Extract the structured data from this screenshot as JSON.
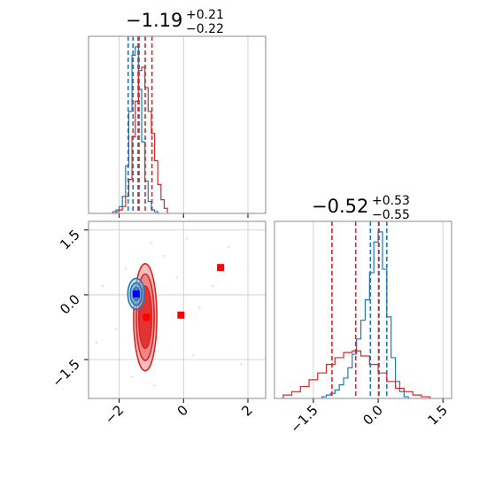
{
  "chart_data": {
    "type": "corner",
    "panels": [
      {
        "id": "marginal-1",
        "type": "histogram",
        "title": {
          "value": "−1.19",
          "plus": "+0.21",
          "minus": "−0.22"
        },
        "xlim": [
          -2.95,
          2.55
        ],
        "xticks": [
          -2,
          0,
          2
        ],
        "xtick_labels": [
          "",
          "",
          ""
        ],
        "grid": true,
        "series": [
          {
            "name": "",
            "color": "#1f77b4",
            "bin_edges": [
              -2.2,
              -2.1,
              -2.0,
              -1.9,
              -1.8,
              -1.7,
              -1.6,
              -1.5,
              -1.4,
              -1.3,
              -1.2,
              -1.1,
              -1.0,
              -0.9,
              -0.8
            ],
            "counts": [
              0.01,
              0.02,
              0.04,
              0.1,
              0.28,
              0.6,
              0.93,
              0.98,
              0.73,
              0.42,
              0.19,
              0.07,
              0.02,
              0.01
            ],
            "quantile_lines": [
              -1.72,
              -1.57,
              -1.38
            ]
          },
          {
            "name": "",
            "color": "#d62728",
            "bin_edges": [
              -2.1,
              -2.0,
              -1.9,
              -1.8,
              -1.7,
              -1.6,
              -1.5,
              -1.4,
              -1.3,
              -1.2,
              -1.1,
              -1.0,
              -0.9,
              -0.8,
              -0.7,
              -0.6,
              -0.5
            ],
            "counts": [
              0.01,
              0.02,
              0.04,
              0.1,
              0.2,
              0.45,
              0.66,
              0.84,
              0.86,
              0.74,
              0.6,
              0.47,
              0.31,
              0.17,
              0.08,
              0.03
            ],
            "quantile_lines": [
              -1.41,
              -1.19,
              -0.98
            ]
          }
        ]
      },
      {
        "id": "marginal-2",
        "type": "histogram",
        "title": {
          "value": "−0.52",
          "plus": "+0.53",
          "minus": "−0.55"
        },
        "xlim": [
          -2.4,
          1.7
        ],
        "xticks": [
          -1.5,
          0.0,
          1.5
        ],
        "xtick_labels": [
          "−1.5",
          "0.0",
          "1.5"
        ],
        "grid": true,
        "series": [
          {
            "name": "",
            "color": "#1f77b4",
            "bin_edges": [
              -1.3,
              -1.2,
              -1.1,
              -1.0,
              -0.9,
              -0.8,
              -0.7,
              -0.6,
              -0.5,
              -0.4,
              -0.3,
              -0.2,
              -0.1,
              0.0,
              0.1,
              0.2,
              0.3,
              0.4,
              0.5,
              0.6,
              0.7
            ],
            "counts": [
              0.01,
              0.02,
              0.03,
              0.05,
              0.08,
              0.12,
              0.18,
              0.26,
              0.35,
              0.46,
              0.58,
              0.74,
              0.92,
              0.98,
              0.76,
              0.48,
              0.24,
              0.1,
              0.04,
              0.01
            ],
            "quantile_lines": [
              -0.18,
              0.02,
              0.2
            ]
          },
          {
            "name": "",
            "color": "#d62728",
            "bin_edges": [
              -2.2,
              -2.0,
              -1.8,
              -1.6,
              -1.4,
              -1.2,
              -1.0,
              -0.8,
              -0.6,
              -0.4,
              -0.2,
              0.0,
              0.2,
              0.4,
              0.6,
              0.8,
              1.0,
              1.2
            ],
            "counts": [
              0.02,
              0.04,
              0.07,
              0.11,
              0.15,
              0.2,
              0.24,
              0.27,
              0.28,
              0.25,
              0.2,
              0.15,
              0.1,
              0.06,
              0.04,
              0.02,
              0.01
            ],
            "quantile_lines": [
              -1.07,
              -0.52,
              0.01
            ]
          }
        ]
      },
      {
        "id": "joint-1-2",
        "type": "contour",
        "xlim": [
          -2.95,
          2.55
        ],
        "ylim": [
          -2.4,
          1.7
        ],
        "xticks": [
          -2,
          0,
          2
        ],
        "xtick_labels": [
          "−2",
          "0",
          "2"
        ],
        "yticks": [
          1.5,
          0.0,
          -1.5
        ],
        "ytick_labels": [
          "1.5",
          "0.0",
          "−1.5"
        ],
        "grid": true,
        "horizontal_lines": [
          -0.52
        ],
        "vertical_lines": [
          -1.19
        ],
        "contours": [
          {
            "name": "",
            "color": "#1f77b4",
            "center": [
              -1.47,
              0.02
            ],
            "levels": [
              {
                "sx": 0.26,
                "sy": 0.36
              },
              {
                "sx": 0.18,
                "sy": 0.26
              },
              {
                "sx": 0.1,
                "sy": 0.15
              }
            ]
          },
          {
            "name": "",
            "color": "#d62728",
            "center": [
              -1.19,
              -0.52
            ],
            "levels": [
              {
                "sx": 0.36,
                "sy": 1.24
              },
              {
                "sx": 0.28,
                "sy": 1.0
              },
              {
                "sx": 0.2,
                "sy": 0.72
              }
            ]
          }
        ],
        "markers": [
          {
            "x": -1.47,
            "y": 0.02,
            "color": "#0000ff",
            "shape": "square"
          },
          {
            "x": -1.15,
            "y": -0.52,
            "color": "#ff0000",
            "shape": "square"
          },
          {
            "x": -0.08,
            "y": -0.47,
            "color": "#ff0000",
            "shape": "square"
          },
          {
            "x": 1.15,
            "y": 0.63,
            "color": "#ff0000",
            "shape": "square"
          }
        ]
      }
    ]
  }
}
